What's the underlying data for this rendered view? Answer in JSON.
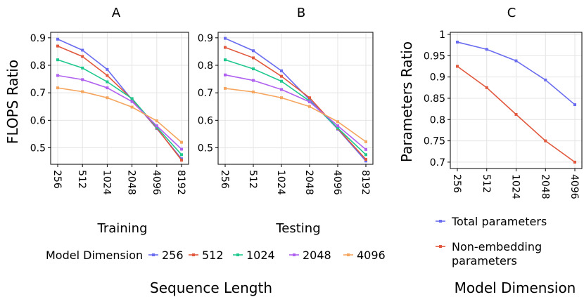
{
  "chart_data": [
    {
      "type": "line",
      "panel": "A",
      "subtitle": "Training",
      "xlabel": "Sequence Length",
      "ylabel": "FLOPS Ratio",
      "categories": [
        "256",
        "512",
        "1024",
        "2048",
        "4096",
        "8192"
      ],
      "yticks": [
        "0.5",
        "0.6",
        "0.7",
        "0.8",
        "0.9"
      ],
      "ylim": [
        0.44,
        0.92
      ],
      "grid": true,
      "legend_title": "Model Dimension",
      "series": [
        {
          "name": "256",
          "color": "#6a6cf0",
          "values": [
            0.895,
            0.855,
            0.785,
            0.675,
            0.57,
            0.46
          ]
        },
        {
          "name": "512",
          "color": "#e1583d",
          "values": [
            0.87,
            0.832,
            0.763,
            0.677,
            0.572,
            0.455
          ]
        },
        {
          "name": "1024",
          "color": "#1fc98e",
          "values": [
            0.82,
            0.79,
            0.74,
            0.679,
            0.575,
            0.475
          ]
        },
        {
          "name": "2048",
          "color": "#b061f0",
          "values": [
            0.763,
            0.748,
            0.718,
            0.668,
            0.58,
            0.495
          ]
        },
        {
          "name": "4096",
          "color": "#f5a55e",
          "values": [
            0.718,
            0.704,
            0.682,
            0.648,
            0.598,
            0.52
          ]
        }
      ]
    },
    {
      "type": "line",
      "panel": "B",
      "subtitle": "Testing",
      "xlabel": "Sequence Length",
      "ylabel": "FLOPS Ratio",
      "categories": [
        "256",
        "512",
        "1024",
        "2048",
        "4096",
        "8192"
      ],
      "yticks": [
        "0.5",
        "0.6",
        "0.7",
        "0.8",
        "0.9"
      ],
      "ylim": [
        0.44,
        0.92
      ],
      "grid": true,
      "series": [
        {
          "name": "256",
          "color": "#6a6cf0",
          "values": [
            0.898,
            0.853,
            0.78,
            0.675,
            0.568,
            0.452
          ]
        },
        {
          "name": "512",
          "color": "#e1583d",
          "values": [
            0.865,
            0.827,
            0.76,
            0.682,
            0.57,
            0.458
          ]
        },
        {
          "name": "1024",
          "color": "#1fc98e",
          "values": [
            0.82,
            0.787,
            0.742,
            0.67,
            0.572,
            0.475
          ]
        },
        {
          "name": "2048",
          "color": "#b061f0",
          "values": [
            0.765,
            0.745,
            0.712,
            0.667,
            0.58,
            0.494
          ]
        },
        {
          "name": "4096",
          "color": "#f5a55e",
          "values": [
            0.716,
            0.703,
            0.682,
            0.65,
            0.595,
            0.522
          ]
        }
      ]
    },
    {
      "type": "line",
      "panel": "C",
      "xlabel": "Model Dimension",
      "ylabel": "Parameters Ratio",
      "categories": [
        "256",
        "512",
        "1024",
        "2048",
        "4096"
      ],
      "yticks": [
        "0.7",
        "0.75",
        "0.8",
        "0.85",
        "0.9",
        "0.95",
        "1"
      ],
      "ylim": [
        0.685,
        1.005
      ],
      "grid": true,
      "series": [
        {
          "name": "Total parameters",
          "color": "#6a6cf0",
          "values": [
            0.982,
            0.965,
            0.938,
            0.893,
            0.835
          ]
        },
        {
          "name": "Non-embedding parameters",
          "color": "#e1583d",
          "values": [
            0.925,
            0.875,
            0.812,
            0.75,
            0.7
          ]
        }
      ]
    }
  ],
  "labels": {
    "panel_a": "A",
    "panel_b": "B",
    "panel_c": "C",
    "subtitle_a": "Training",
    "subtitle_b": "Testing",
    "ylabel_ab": "FLOPS Ratio",
    "ylabel_c": "Parameters Ratio",
    "xlabel_ab": "Sequence Length",
    "xlabel_c": "Model Dimension",
    "legend_title": "Model Dimension",
    "legend_c_total": "Total parameters",
    "legend_c_nonemb_line1": "Non-embedding",
    "legend_c_nonemb_line2": "parameters"
  }
}
